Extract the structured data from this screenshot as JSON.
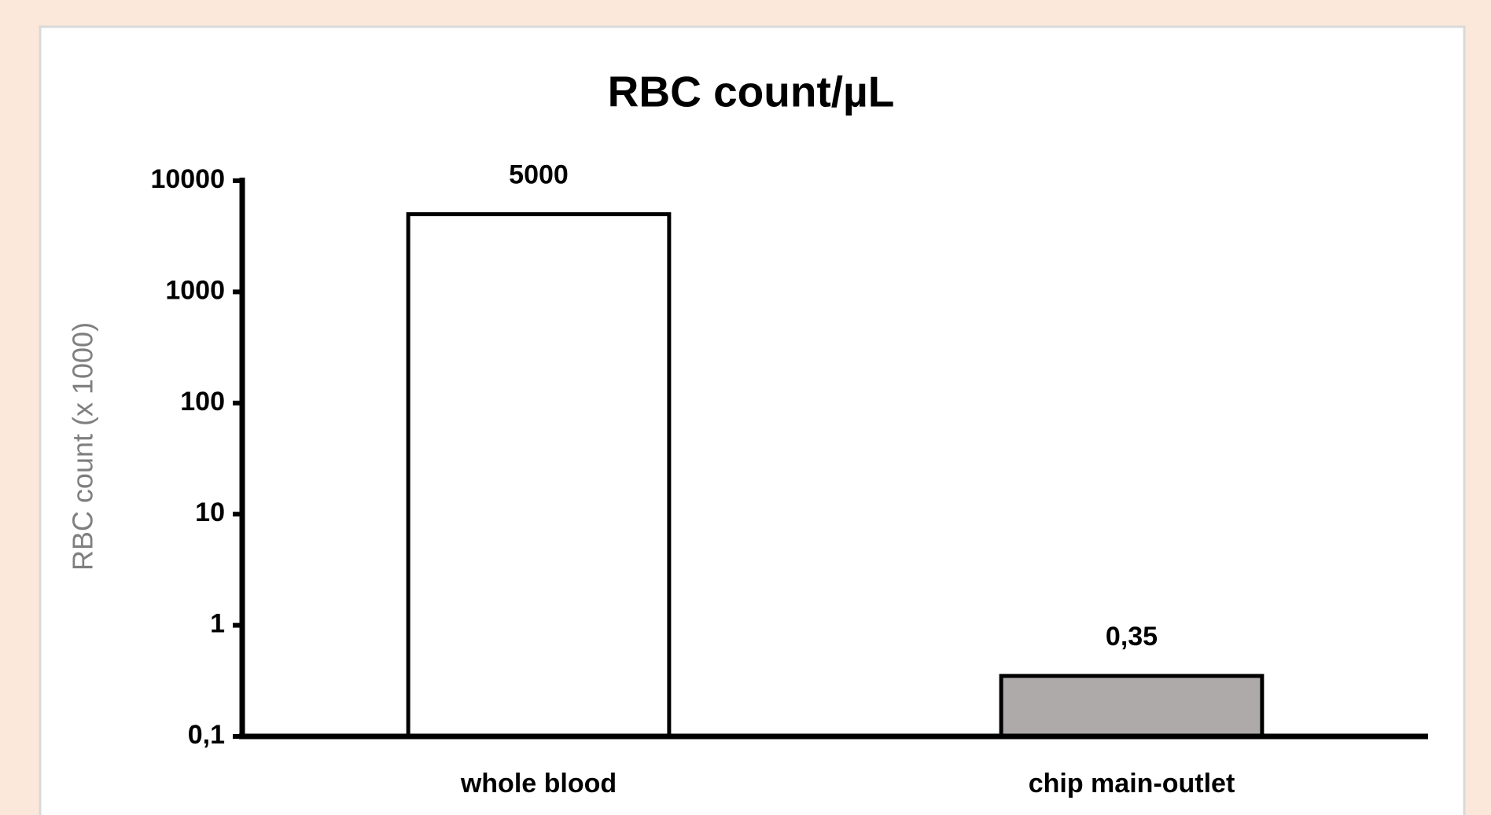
{
  "chart_data": {
    "type": "bar",
    "title": "RBC count/µL",
    "y_label": "RBC count  (x 1000)",
    "categories": [
      "whole blood",
      "chip main-outlet"
    ],
    "values": [
      5000,
      0.35
    ],
    "value_labels": [
      "5000",
      "0,35"
    ],
    "colors": [
      "#ffffff",
      "#aeaaaa"
    ],
    "log_scale": true,
    "grid": false,
    "ylim": [
      0.1,
      10000
    ],
    "yticks": [
      {
        "value": 0.1,
        "label": "0,1"
      },
      1,
      10,
      100,
      1000,
      10000
    ]
  }
}
